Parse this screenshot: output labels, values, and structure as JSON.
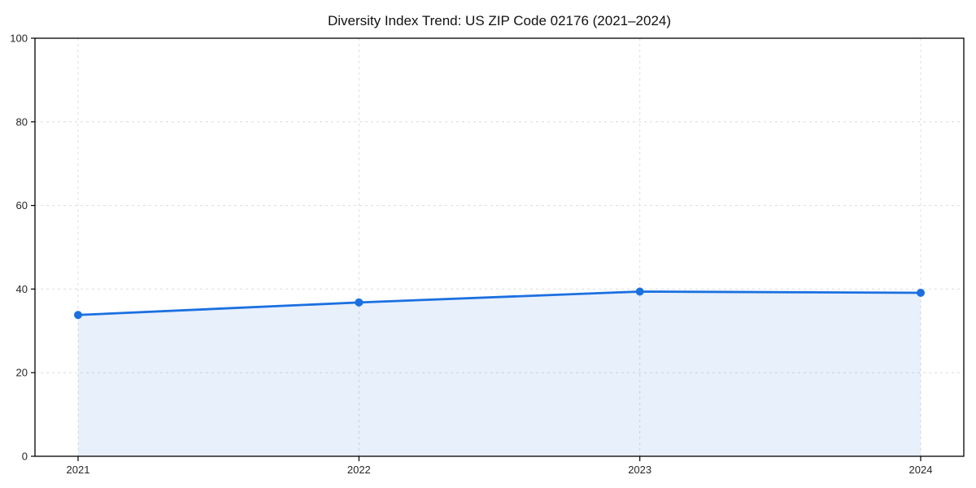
{
  "figure": {
    "background": "#ffffff"
  },
  "chart_data": {
    "type": "line",
    "subtype": "area-filled line with circle markers",
    "title": "Diversity Index Trend: US ZIP Code 02176 (2021–2024)",
    "xlabel": "",
    "ylabel": "",
    "x": [
      "2021",
      "2022",
      "2023",
      "2024"
    ],
    "series": [
      {
        "name": "Diversity Index",
        "values": [
          33.8,
          36.8,
          39.4,
          39.1
        ]
      }
    ],
    "ylim": [
      0,
      100
    ],
    "yticks": [
      0,
      20,
      40,
      60,
      80,
      100
    ],
    "xticks": [
      "2021",
      "2022",
      "2023",
      "2024"
    ],
    "grid": true,
    "grid_style": "dashed",
    "legend": "none",
    "colors": {
      "line": "#1b70e0",
      "marker": "#1b70e0",
      "fill": "#1b70e0",
      "fill_opacity": 0.1,
      "grid": "#dcdcdc",
      "spine": "#000000",
      "tick_label": "#262626",
      "title": "#111111"
    }
  }
}
